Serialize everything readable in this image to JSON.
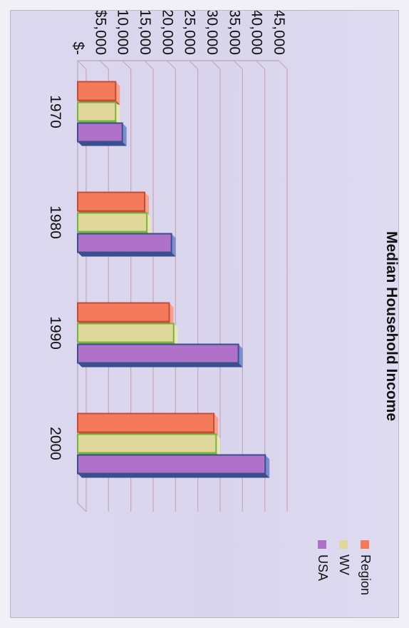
{
  "chart_data": {
    "type": "bar",
    "orientation": "rotated-90-clockwise",
    "title": "Median Household Income",
    "categories": [
      "1970",
      "1980",
      "1990",
      "2000"
    ],
    "series": [
      {
        "name": "Region",
        "values": [
          8500,
          15000,
          20500,
          30500
        ]
      },
      {
        "name": "WV",
        "values": [
          8500,
          15500,
          21500,
          31000
        ]
      },
      {
        "name": "USA",
        "values": [
          10000,
          21000,
          36000,
          42000
        ]
      }
    ],
    "y_ticks": [
      "$-",
      "$5,000",
      "$10,000",
      "$15,000",
      "$20,000",
      "$25,000",
      "$30,000",
      "$35,000",
      "$40,000",
      "$45,000"
    ],
    "ylim": [
      0,
      45000
    ],
    "legend_position": "right",
    "colors": {
      "Region": "#f47a5c",
      "WV": "#dfd89a",
      "USA": "#b072c8",
      "WV_edge": "#73b63c",
      "USA_edge": "#3a4f8c",
      "grid": "#c9a6b6",
      "axis_text": "#111111"
    }
  }
}
